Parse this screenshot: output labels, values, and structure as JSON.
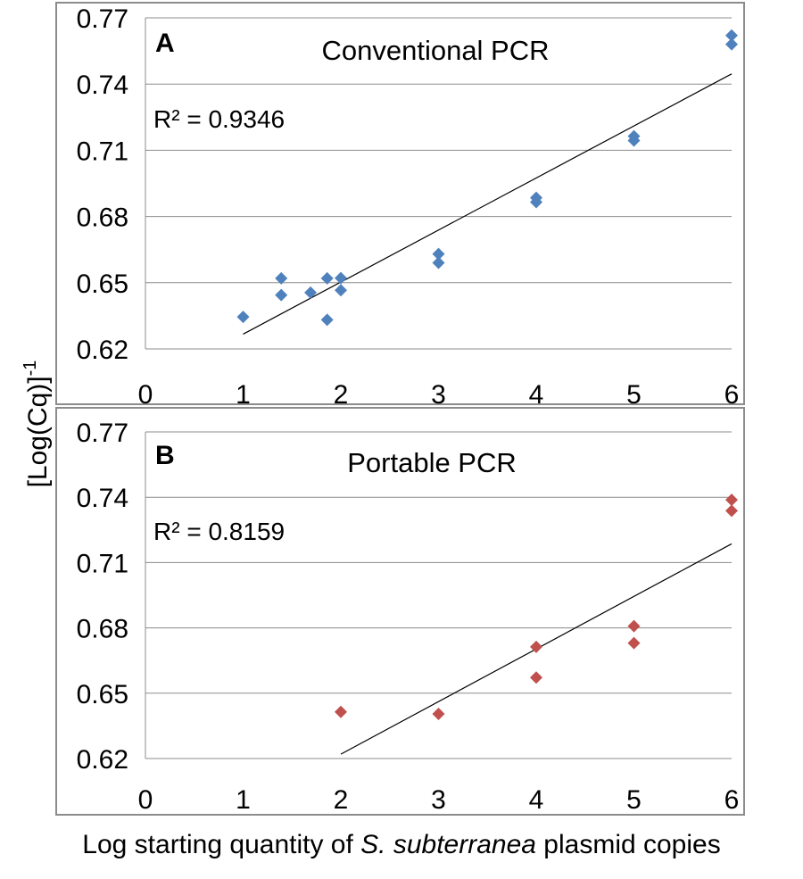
{
  "figure": {
    "ylabel_main": "[Log(Cq)]",
    "ylabel_sup": "-1",
    "xlabel_pre": "Log starting quantity of ",
    "xlabel_italic": "S. subterranea",
    "xlabel_post": " plasmid copies"
  },
  "chart_data": [
    {
      "type": "scatter",
      "panel": "A",
      "title": "Conventional PCR",
      "r2_text": "R² = 0.9346",
      "xlim": [
        0,
        6
      ],
      "ylim": [
        0.62,
        0.77
      ],
      "x_ticks": [
        "0",
        "1",
        "2",
        "3",
        "4",
        "5",
        "6"
      ],
      "y_ticks": [
        "0.62",
        "0.65",
        "0.68",
        "0.71",
        "0.74",
        "0.77"
      ],
      "grid": true,
      "marker_color": "#4f81bd",
      "trendline": {
        "x": [
          1,
          6
        ],
        "y": [
          0.6267,
          0.7446
        ]
      },
      "points": [
        {
          "x": 1.0,
          "y": 0.6345
        },
        {
          "x": 1.39,
          "y": 0.652
        },
        {
          "x": 1.39,
          "y": 0.6444
        },
        {
          "x": 1.69,
          "y": 0.6455
        },
        {
          "x": 1.86,
          "y": 0.652
        },
        {
          "x": 1.86,
          "y": 0.6332
        },
        {
          "x": 2.0,
          "y": 0.6521
        },
        {
          "x": 2.0,
          "y": 0.6466
        },
        {
          "x": 3.0,
          "y": 0.663
        },
        {
          "x": 3.0,
          "y": 0.659
        },
        {
          "x": 4.0,
          "y": 0.6885
        },
        {
          "x": 4.0,
          "y": 0.6865
        },
        {
          "x": 5.0,
          "y": 0.7164
        },
        {
          "x": 5.0,
          "y": 0.7144
        },
        {
          "x": 6.0,
          "y": 0.762
        },
        {
          "x": 6.0,
          "y": 0.758
        }
      ]
    },
    {
      "type": "scatter",
      "panel": "B",
      "title": "Portable PCR",
      "r2_text": "R² = 0.8159",
      "xlim": [
        0,
        6
      ],
      "ylim": [
        0.62,
        0.77
      ],
      "x_ticks": [
        "0",
        "1",
        "2",
        "3",
        "4",
        "5",
        "6"
      ],
      "y_ticks": [
        "0.62",
        "0.65",
        "0.68",
        "0.71",
        "0.74",
        "0.77"
      ],
      "grid": true,
      "marker_color": "#c0504d",
      "trendline": {
        "x": [
          2,
          6
        ],
        "y": [
          0.622,
          0.7186
        ]
      },
      "points": [
        {
          "x": 2.0,
          "y": 0.6414
        },
        {
          "x": 3.0,
          "y": 0.6405
        },
        {
          "x": 4.0,
          "y": 0.6713
        },
        {
          "x": 4.0,
          "y": 0.6572
        },
        {
          "x": 5.0,
          "y": 0.6808
        },
        {
          "x": 5.0,
          "y": 0.673
        },
        {
          "x": 6.0,
          "y": 0.7388
        },
        {
          "x": 6.0,
          "y": 0.7338
        }
      ]
    }
  ]
}
